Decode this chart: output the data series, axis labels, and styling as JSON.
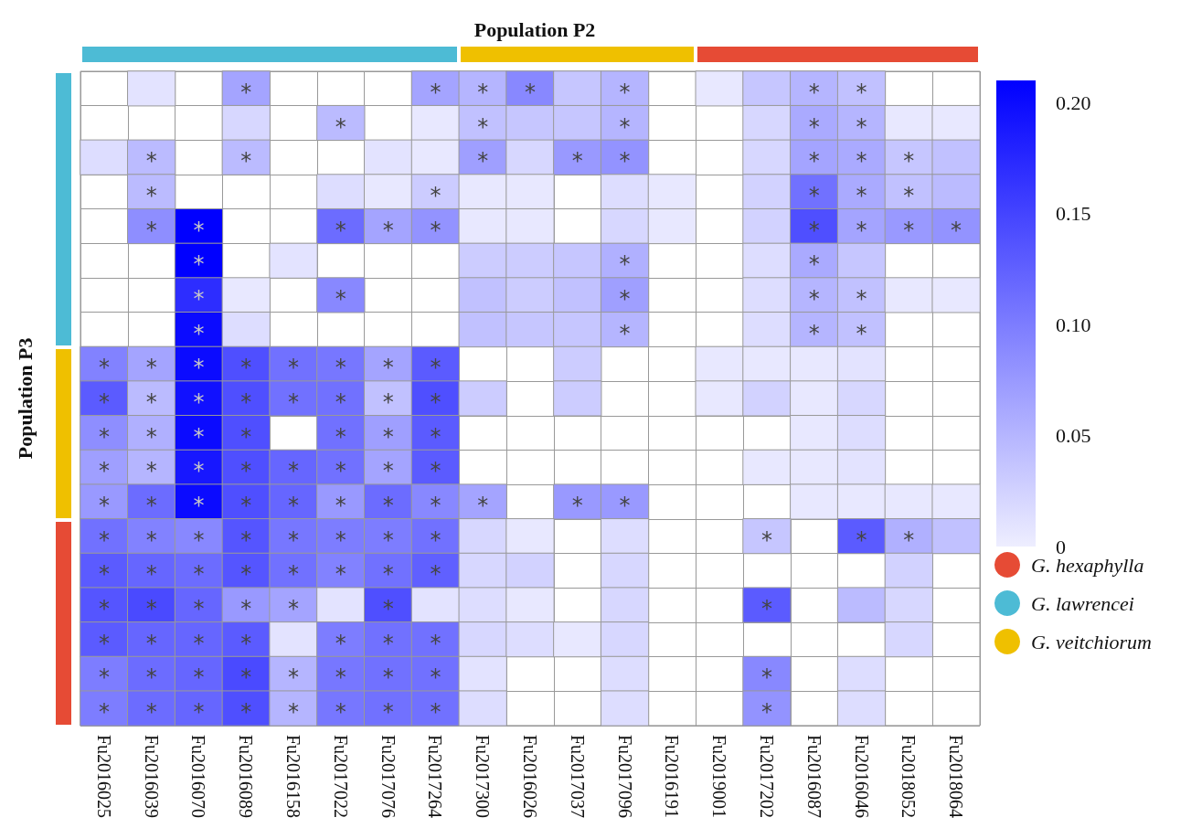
{
  "chart_data": {
    "type": "heatmap",
    "title": "Population P2",
    "ylabel": "Population P3",
    "categories": [
      "Fu2016025",
      "Fu2016039",
      "Fu2016070",
      "Fu2016089",
      "Fu2016158",
      "Fu2017022",
      "Fu2017076",
      "Fu2017264",
      "Fu2017300",
      "Fu2016026",
      "Fu2017037",
      "Fu2017096",
      "Fu2016191",
      "Fu2019001",
      "Fu2017202",
      "Fu2016087",
      "Fu2016046",
      "Fu2018052",
      "Fu2018064"
    ],
    "y_categories": [
      null,
      null,
      null,
      null,
      null,
      null,
      null,
      null,
      null,
      null,
      null,
      null,
      null,
      null,
      null,
      null,
      null,
      null,
      null
    ],
    "cells": [
      [
        null,
        0.01,
        null,
        0.065,
        null,
        null,
        null,
        0.065,
        0.05,
        0.09,
        0.035,
        0.05,
        null,
        0.005,
        0.035,
        0.05,
        0.04,
        null,
        null
      ],
      [
        null,
        null,
        null,
        0.02,
        null,
        0.045,
        null,
        0.005,
        0.04,
        0.035,
        0.035,
        0.05,
        null,
        null,
        0.02,
        0.06,
        0.05,
        0.005,
        0.005
      ],
      [
        0.015,
        0.045,
        null,
        0.045,
        null,
        null,
        0.01,
        0.005,
        0.07,
        0.02,
        0.075,
        0.08,
        null,
        null,
        0.02,
        0.065,
        0.06,
        0.035,
        0.04
      ],
      [
        null,
        0.045,
        null,
        null,
        null,
        0.015,
        0.005,
        0.03,
        0.005,
        0.005,
        null,
        0.015,
        0.005,
        null,
        0.025,
        0.11,
        0.06,
        0.04,
        0.045
      ],
      [
        null,
        0.085,
        0.21,
        null,
        null,
        0.115,
        0.065,
        0.08,
        0.005,
        0.005,
        null,
        0.02,
        0.005,
        null,
        0.025,
        0.14,
        0.065,
        0.075,
        0.08
      ],
      [
        null,
        null,
        0.21,
        null,
        0.01,
        null,
        null,
        null,
        0.03,
        0.03,
        0.035,
        0.055,
        null,
        null,
        0.015,
        0.06,
        0.035,
        null,
        null
      ],
      [
        null,
        null,
        0.17,
        0.005,
        null,
        0.09,
        null,
        null,
        0.04,
        0.03,
        0.04,
        0.07,
        null,
        null,
        0.015,
        0.05,
        0.04,
        0.005,
        0.005
      ],
      [
        null,
        null,
        0.2,
        0.015,
        null,
        null,
        null,
        null,
        0.04,
        0.035,
        0.035,
        0.05,
        null,
        null,
        0.015,
        0.05,
        0.04,
        null,
        null
      ],
      [
        0.095,
        0.065,
        0.2,
        0.14,
        0.11,
        0.105,
        0.065,
        0.13,
        null,
        null,
        0.03,
        null,
        null,
        0.005,
        0.005,
        0.005,
        0.01,
        null,
        null
      ],
      [
        0.13,
        0.045,
        0.195,
        0.14,
        0.11,
        0.11,
        0.04,
        0.14,
        0.03,
        null,
        0.03,
        null,
        null,
        0.005,
        0.025,
        0.005,
        0.02,
        null,
        null
      ],
      [
        0.085,
        0.055,
        0.2,
        0.14,
        null,
        0.11,
        0.07,
        0.13,
        null,
        null,
        null,
        null,
        null,
        null,
        null,
        0.005,
        0.015,
        null,
        null
      ],
      [
        0.07,
        0.05,
        0.19,
        0.14,
        0.12,
        0.11,
        0.065,
        0.13,
        null,
        null,
        null,
        null,
        null,
        null,
        0.005,
        0.005,
        0.01,
        null,
        null
      ],
      [
        0.075,
        0.115,
        0.2,
        0.14,
        0.12,
        0.075,
        0.115,
        0.09,
        0.065,
        null,
        0.075,
        0.075,
        null,
        null,
        null,
        0.005,
        0.005,
        0.005,
        0.005
      ],
      [
        0.11,
        0.095,
        0.09,
        0.135,
        0.105,
        0.1,
        0.1,
        0.11,
        0.02,
        0.005,
        null,
        0.015,
        null,
        null,
        0.035,
        null,
        0.13,
        0.055,
        0.04
      ],
      [
        0.13,
        0.12,
        0.115,
        0.135,
        0.11,
        0.095,
        0.11,
        0.125,
        0.02,
        0.025,
        null,
        0.02,
        null,
        null,
        null,
        null,
        null,
        0.025,
        null
      ],
      [
        0.135,
        0.145,
        0.12,
        0.075,
        0.065,
        0.01,
        0.14,
        0.01,
        0.015,
        0.005,
        null,
        0.02,
        null,
        null,
        0.13,
        null,
        0.045,
        0.02,
        null
      ],
      [
        0.13,
        0.12,
        0.12,
        0.13,
        0.01,
        0.1,
        0.11,
        0.11,
        0.02,
        0.015,
        0.005,
        0.02,
        null,
        null,
        null,
        null,
        null,
        0.02,
        null
      ],
      [
        0.1,
        0.115,
        0.12,
        0.145,
        0.05,
        0.105,
        0.11,
        0.11,
        0.01,
        null,
        null,
        0.015,
        null,
        null,
        0.09,
        null,
        0.015,
        null,
        null
      ],
      [
        0.1,
        0.115,
        0.12,
        0.14,
        0.05,
        0.105,
        0.11,
        0.11,
        0.015,
        null,
        null,
        0.015,
        null,
        null,
        0.08,
        null,
        0.015,
        null,
        null
      ]
    ],
    "cell_labels": [
      [
        null,
        null,
        null,
        "*",
        null,
        null,
        null,
        "*",
        "*",
        "*",
        null,
        "*",
        null,
        null,
        null,
        "*",
        "*",
        null,
        null
      ],
      [
        null,
        null,
        null,
        null,
        null,
        "*",
        null,
        null,
        "*",
        null,
        null,
        "*",
        null,
        null,
        null,
        "*",
        "*",
        null,
        null
      ],
      [
        null,
        "*",
        null,
        "*",
        null,
        null,
        null,
        null,
        "*",
        null,
        "*",
        "*",
        null,
        null,
        null,
        "*",
        "*",
        "*",
        null
      ],
      [
        null,
        "*",
        null,
        null,
        null,
        null,
        null,
        "*",
        null,
        null,
        null,
        null,
        null,
        null,
        null,
        "*",
        "*",
        "*",
        null
      ],
      [
        null,
        "*",
        "*",
        null,
        null,
        "*",
        "*",
        "*",
        null,
        null,
        null,
        null,
        null,
        null,
        null,
        "*",
        "*",
        "*",
        "*"
      ],
      [
        null,
        null,
        "*",
        null,
        null,
        null,
        null,
        null,
        null,
        null,
        null,
        "*",
        null,
        null,
        null,
        "*",
        null,
        null,
        null
      ],
      [
        null,
        null,
        "*",
        null,
        null,
        "*",
        null,
        null,
        null,
        null,
        null,
        "*",
        null,
        null,
        null,
        "*",
        "*",
        null,
        null
      ],
      [
        null,
        null,
        "*",
        null,
        null,
        null,
        null,
        null,
        null,
        null,
        null,
        "*",
        null,
        null,
        null,
        "*",
        "*",
        null,
        null
      ],
      [
        "*",
        "*",
        "*",
        "*",
        "*",
        "*",
        "*",
        "*",
        null,
        null,
        null,
        null,
        null,
        null,
        null,
        null,
        null,
        null,
        null
      ],
      [
        "*",
        "*",
        "*",
        "*",
        "*",
        "*",
        "*",
        "*",
        null,
        null,
        null,
        null,
        null,
        null,
        null,
        null,
        null,
        null,
        null
      ],
      [
        "*",
        "*",
        "*",
        "*",
        null,
        "*",
        "*",
        "*",
        null,
        null,
        null,
        null,
        null,
        null,
        null,
        null,
        null,
        null,
        null
      ],
      [
        "*",
        "*",
        "*",
        "*",
        "*",
        "*",
        "*",
        "*",
        null,
        null,
        null,
        null,
        null,
        null,
        null,
        null,
        null,
        null,
        null
      ],
      [
        "*",
        "*",
        "*",
        "*",
        "*",
        "*",
        "*",
        "*",
        "*",
        null,
        "*",
        "*",
        null,
        null,
        null,
        null,
        null,
        null,
        null
      ],
      [
        "*",
        "*",
        "*",
        "*",
        "*",
        "*",
        "*",
        "*",
        null,
        null,
        null,
        null,
        null,
        null,
        "*",
        null,
        "*",
        "*",
        null
      ],
      [
        "*",
        "*",
        "*",
        "*",
        "*",
        "*",
        "*",
        "*",
        null,
        null,
        null,
        null,
        null,
        null,
        null,
        null,
        null,
        null,
        null
      ],
      [
        "*",
        "*",
        "*",
        "*",
        "*",
        null,
        "*",
        null,
        null,
        null,
        null,
        null,
        null,
        null,
        "*",
        null,
        null,
        null,
        null
      ],
      [
        "*",
        "*",
        "*",
        "*",
        null,
        "*",
        "*",
        "*",
        null,
        null,
        null,
        null,
        null,
        null,
        null,
        null,
        null,
        null,
        null
      ],
      [
        "*",
        "*",
        "*",
        "*",
        "*",
        "*",
        "*",
        "*",
        null,
        null,
        null,
        null,
        null,
        null,
        "*",
        null,
        null,
        null,
        null
      ],
      [
        "*",
        "*",
        "*",
        "*",
        "*",
        "*",
        "*",
        "*",
        null,
        null,
        null,
        null,
        null,
        null,
        "*",
        null,
        null,
        null,
        null
      ]
    ],
    "clim": [
      0,
      0.21
    ],
    "cticks": [
      {
        "value": 0,
        "label": "0"
      },
      {
        "value": 0.05,
        "label": "0.05"
      },
      {
        "value": 0.1,
        "label": "0.10"
      },
      {
        "value": 0.15,
        "label": "0.15"
      },
      {
        "value": 0.2,
        "label": "0.20"
      }
    ],
    "series": [
      {
        "name": "G. hexaphylla",
        "color": "#e64b35",
        "x": [
          "Fu2019001",
          "Fu2017202",
          "Fu2016087",
          "Fu2016046",
          "Fu2018052",
          "Fu2018064"
        ],
        "values": [
          null,
          null,
          null,
          null,
          null,
          null
        ]
      },
      {
        "name": "G. lawrencei",
        "color": "#4dbbd5",
        "x": [
          "Fu2016025",
          "Fu2016039",
          "Fu2016070",
          "Fu2016089",
          "Fu2016158",
          "Fu2017022",
          "Fu2017076",
          "Fu2017264"
        ],
        "values": [
          null,
          null,
          null,
          null,
          null,
          null,
          null,
          null
        ]
      },
      {
        "name": "G. veitchiorum",
        "color": "#efc000",
        "x": [
          "Fu2017300",
          "Fu2016026",
          "Fu2017037",
          "Fu2017096",
          "Fu2016191"
        ],
        "values": [
          null,
          null,
          null,
          null,
          null
        ]
      }
    ],
    "legend": "right",
    "tick_labels": "x"
  }
}
